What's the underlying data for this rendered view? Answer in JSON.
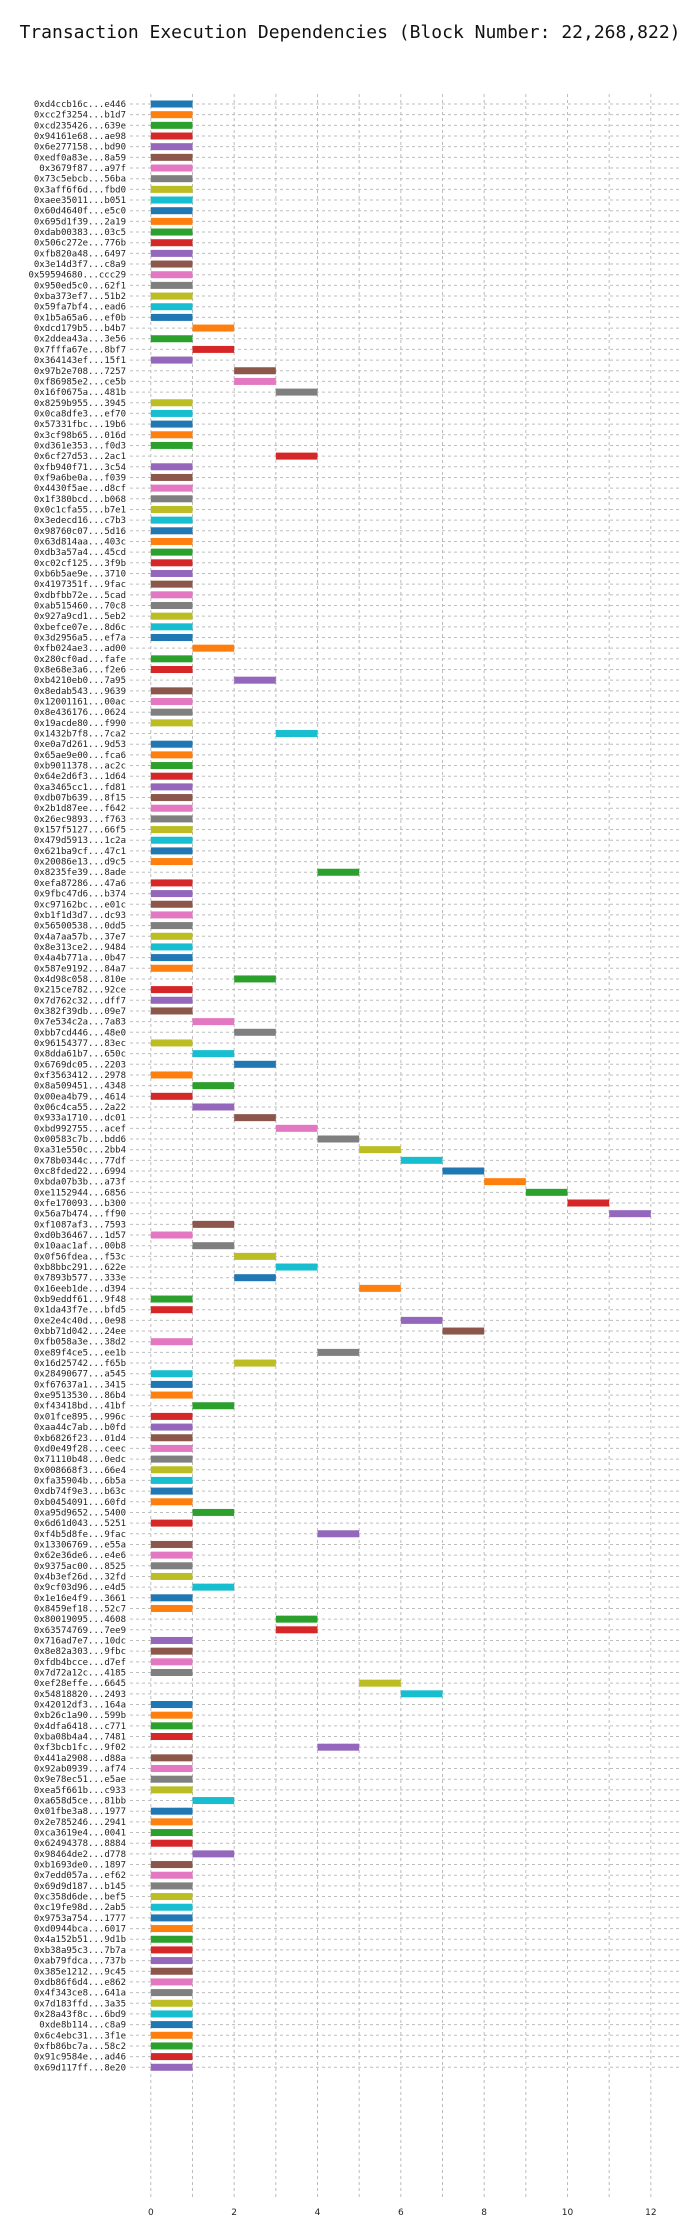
{
  "chart_data": {
    "type": "bar",
    "orientation": "horizontal-gantt",
    "title": "Transaction Execution Dependencies (Block Number: 22,268,822)",
    "xlabel": "",
    "ylabel": "",
    "xlim": [
      -0.5,
      12.7
    ],
    "xticks": [
      0,
      2,
      4,
      6,
      8,
      10,
      12
    ],
    "grid": "on",
    "legend": "none",
    "colors": [
      "#1f77b4",
      "#ff7f0e",
      "#2ca02c",
      "#d62728",
      "#9467bd",
      "#8c564b",
      "#e377c2",
      "#7f7f7f",
      "#bcbd22",
      "#17becf"
    ],
    "transactions": [
      [
        "0xd4ccb16c...e446",
        0,
        1
      ],
      [
        "0xcc2f3254...b1d7",
        0,
        1
      ],
      [
        "0xcd235426...639e",
        0,
        1
      ],
      [
        "0x94161e68...ae98",
        0,
        1
      ],
      [
        "0x6e277158...bd90",
        0,
        1
      ],
      [
        "0xedf0a83e...8a59",
        0,
        1
      ],
      [
        "0x3679f87...a97f",
        0,
        1
      ],
      [
        "0x73c5ebcb...56ba",
        0,
        1
      ],
      [
        "0x3aff6f6d...fbd0",
        0,
        1
      ],
      [
        "0xaee35011...b051",
        0,
        1
      ],
      [
        "0x60d4640f...e5c0",
        0,
        1
      ],
      [
        "0x695d1f39...2a19",
        0,
        1
      ],
      [
        "0xdab00383...03c5",
        0,
        1
      ],
      [
        "0x506c272e...776b",
        0,
        1
      ],
      [
        "0xfb820a48...6497",
        0,
        1
      ],
      [
        "0x3e14d3f7...c8a9",
        0,
        1
      ],
      [
        "0x59594680...ccc29",
        0,
        1
      ],
      [
        "0x950ed5c0...62f1",
        0,
        1
      ],
      [
        "0xba373ef7...51b2",
        0,
        1
      ],
      [
        "0x59fa7bf4...ead6",
        0,
        1
      ],
      [
        "0x1b5a65a6...ef0b",
        0,
        1
      ],
      [
        "0xdcd179b5...b4b7",
        1,
        2
      ],
      [
        "0x2ddea43a...3e56",
        0,
        1
      ],
      [
        "0x7fffa67e...8bf7",
        1,
        2
      ],
      [
        "0x364143ef...15f1",
        0,
        1
      ],
      [
        "0x97b2e708...7257",
        2,
        3
      ],
      [
        "0xf86985e2...ce5b",
        2,
        3
      ],
      [
        "0x16f0675a...481b",
        3,
        4
      ],
      [
        "0x8259b955...3945",
        0,
        1
      ],
      [
        "0x0ca8dfe3...ef70",
        0,
        1
      ],
      [
        "0x57331fbc...19b6",
        0,
        1
      ],
      [
        "0x3cf98b65...016d",
        0,
        1
      ],
      [
        "0xd361e353...f0d3",
        0,
        1
      ],
      [
        "0x6cf27d53...2ac1",
        3,
        4
      ],
      [
        "0xfb940f71...3c54",
        0,
        1
      ],
      [
        "0xf9a6be0a...f039",
        0,
        1
      ],
      [
        "0x4430f5ae...d8cf",
        0,
        1
      ],
      [
        "0x1f380bcd...b068",
        0,
        1
      ],
      [
        "0x0c1cfa55...b7e1",
        0,
        1
      ],
      [
        "0x3edecd16...c7b3",
        0,
        1
      ],
      [
        "0x98760c07...5d16",
        0,
        1
      ],
      [
        "0x63d814aa...403c",
        0,
        1
      ],
      [
        "0xdb3a57a4...45cd",
        0,
        1
      ],
      [
        "0xc02cf125...3f9b",
        0,
        1
      ],
      [
        "0xb6b5ae9e...3710",
        0,
        1
      ],
      [
        "0x4197351f...9fac",
        0,
        1
      ],
      [
        "0xdbfbb72e...5cad",
        0,
        1
      ],
      [
        "0xab515460...70c8",
        0,
        1
      ],
      [
        "0x927a9cd1...5eb2",
        0,
        1
      ],
      [
        "0xbefce07e...8d6c",
        0,
        1
      ],
      [
        "0x3d2956a5...ef7a",
        0,
        1
      ],
      [
        "0xfb024ae3...ad00",
        1,
        2
      ],
      [
        "0x280cf0ad...fafe",
        0,
        1
      ],
      [
        "0x8e68e3a6...f2e6",
        0,
        1
      ],
      [
        "0xb4210eb0...7a95",
        2,
        3
      ],
      [
        "0x8edab543...9639",
        0,
        1
      ],
      [
        "0x12001161...00ac",
        0,
        1
      ],
      [
        "0x8e436176...0624",
        0,
        1
      ],
      [
        "0x19acde80...f990",
        0,
        1
      ],
      [
        "0x1432b7f8...7ca2",
        3,
        4
      ],
      [
        "0xe0a7d261...9d53",
        0,
        1
      ],
      [
        "0x65ae9e00...fca6",
        0,
        1
      ],
      [
        "0xb9011378...ac2c",
        0,
        1
      ],
      [
        "0x64e2d6f3...1d64",
        0,
        1
      ],
      [
        "0xa3465cc1...fd81",
        0,
        1
      ],
      [
        "0xdb07b639...8f15",
        0,
        1
      ],
      [
        "0x2b1d87ee...f642",
        0,
        1
      ],
      [
        "0x26ec9893...f763",
        0,
        1
      ],
      [
        "0x157f5127...66f5",
        0,
        1
      ],
      [
        "0x479d5913...1c2a",
        0,
        1
      ],
      [
        "0x621ba9cf...47c1",
        0,
        1
      ],
      [
        "0x20086e13...d9c5",
        0,
        1
      ],
      [
        "0x8235fe39...8ade",
        4,
        5
      ],
      [
        "0xefa87286...47a6",
        0,
        1
      ],
      [
        "0x9fbc47d6...b374",
        0,
        1
      ],
      [
        "0xc97162bc...e01c",
        0,
        1
      ],
      [
        "0xb1f1d3d7...dc93",
        0,
        1
      ],
      [
        "0x56500538...0dd5",
        0,
        1
      ],
      [
        "0x4a7aa57b...37e7",
        0,
        1
      ],
      [
        "0x8e313ce2...9484",
        0,
        1
      ],
      [
        "0x4a4b771a...0b47",
        0,
        1
      ],
      [
        "0x587e9192...84a7",
        0,
        1
      ],
      [
        "0x4d98c058...810e",
        2,
        3
      ],
      [
        "0x215ce782...92ce",
        0,
        1
      ],
      [
        "0x7d762c32...dff7",
        0,
        1
      ],
      [
        "0x382f39db...09e7",
        0,
        1
      ],
      [
        "0x7e534c2a...7a83",
        1,
        2
      ],
      [
        "0xbb7cd446...48e0",
        2,
        3
      ],
      [
        "0x96154377...83ec",
        0,
        1
      ],
      [
        "0x8dda61b7...650c",
        1,
        2
      ],
      [
        "0x6769dc05...2203",
        2,
        3
      ],
      [
        "0xf3563412...2978",
        0,
        1
      ],
      [
        "0x8a509451...4348",
        1,
        2
      ],
      [
        "0x00ea4b79...4614",
        0,
        1
      ],
      [
        "0x06c4ca55...2a22",
        1,
        2
      ],
      [
        "0x933a1710...dc01",
        2,
        3
      ],
      [
        "0xbd992755...acef",
        3,
        4
      ],
      [
        "0x00583c7b...bdd6",
        4,
        5
      ],
      [
        "0xa31e550c...2bb4",
        5,
        6
      ],
      [
        "0x78b0344c...77df",
        6,
        7
      ],
      [
        "0xc8fded22...6994",
        7,
        8
      ],
      [
        "0xbda07b3b...a73f",
        8,
        9
      ],
      [
        "0xe1152944...6856",
        9,
        10
      ],
      [
        "0xfe170093...b300",
        10,
        11
      ],
      [
        "0x56a7b474...ff90",
        11,
        12
      ],
      [
        "0xf1087af3...7593",
        1,
        2
      ],
      [
        "0xd0b36467...1d57",
        0,
        1
      ],
      [
        "0x10aac1af...00b8",
        1,
        2
      ],
      [
        "0x0f56fdea...f53c",
        2,
        3
      ],
      [
        "0xb8bbc291...622e",
        3,
        4
      ],
      [
        "0x7893b577...333e",
        2,
        3
      ],
      [
        "0x16eeb1de...d394",
        5,
        6
      ],
      [
        "0xb9eddf61...9f48",
        0,
        1
      ],
      [
        "0x1da43f7e...bfd5",
        0,
        1
      ],
      [
        "0xe2e4c40d...0e98",
        6,
        7
      ],
      [
        "0xbb71d042...24ee",
        7,
        8
      ],
      [
        "0xfb058a3e...38d2",
        0,
        1
      ],
      [
        "0xe89f4ce5...ee1b",
        4,
        5
      ],
      [
        "0x16d25742...f65b",
        2,
        3
      ],
      [
        "0x28490677...a545",
        0,
        1
      ],
      [
        "0xf67637a1...3415",
        0,
        1
      ],
      [
        "0xe9513530...86b4",
        0,
        1
      ],
      [
        "0xf43418bd...41bf",
        1,
        2
      ],
      [
        "0x01fce895...996c",
        0,
        1
      ],
      [
        "0xaa44c7ab...b0fd",
        0,
        1
      ],
      [
        "0xb6826f23...01d4",
        0,
        1
      ],
      [
        "0xd0e49f28...ceec",
        0,
        1
      ],
      [
        "0x71110b48...0edc",
        0,
        1
      ],
      [
        "0x008668f3...66e4",
        0,
        1
      ],
      [
        "0xfa35904b...6b5a",
        0,
        1
      ],
      [
        "0xdb74f9e3...b63c",
        0,
        1
      ],
      [
        "0xb0454091...60fd",
        0,
        1
      ],
      [
        "0xa95d9652...5400",
        1,
        2
      ],
      [
        "0x6d61d043...5251",
        0,
        1
      ],
      [
        "0xf4b5d8fe...9fac",
        4,
        5
      ],
      [
        "0x13306769...e55a",
        0,
        1
      ],
      [
        "0x62e36de6...e4e6",
        0,
        1
      ],
      [
        "0x9375ac00...8525",
        0,
        1
      ],
      [
        "0x4b3ef26d...32fd",
        0,
        1
      ],
      [
        "0x9cf03d96...e4d5",
        1,
        2
      ],
      [
        "0x1e16e4f9...3661",
        0,
        1
      ],
      [
        "0x8459ef18...52c7",
        0,
        1
      ],
      [
        "0x80019095...4608",
        3,
        4
      ],
      [
        "0x63574769...7ee9",
        3,
        4
      ],
      [
        "0x716ad7e7...10dc",
        0,
        1
      ],
      [
        "0x8e82a303...9fbc",
        0,
        1
      ],
      [
        "0xfdb4bcce...d7ef",
        0,
        1
      ],
      [
        "0x7d72a12c...4185",
        0,
        1
      ],
      [
        "0xef28effe...6645",
        5,
        6
      ],
      [
        "0x54818820...2493",
        6,
        7
      ],
      [
        "0x42012df3...164a",
        0,
        1
      ],
      [
        "0xb26c1a90...599b",
        0,
        1
      ],
      [
        "0x4dfa6418...c771",
        0,
        1
      ],
      [
        "0xba08b4a4...7481",
        0,
        1
      ],
      [
        "0xf3bcb1fc...9f02",
        4,
        5
      ],
      [
        "0x441a2908...d88a",
        0,
        1
      ],
      [
        "0x92ab0939...af74",
        0,
        1
      ],
      [
        "0x9e78ec51...e5ae",
        0,
        1
      ],
      [
        "0xea5f661b...c933",
        0,
        1
      ],
      [
        "0xa658d5ce...81bb",
        1,
        2
      ],
      [
        "0x01fbe3a8...1977",
        0,
        1
      ],
      [
        "0x2e785246...2941",
        0,
        1
      ],
      [
        "0xca3619e4...0041",
        0,
        1
      ],
      [
        "0x62494378...8884",
        0,
        1
      ],
      [
        "0x98464de2...d778",
        1,
        2
      ],
      [
        "0xb1693de0...1897",
        0,
        1
      ],
      [
        "0x7edd057a...ef62",
        0,
        1
      ],
      [
        "0x69d9d187...b145",
        0,
        1
      ],
      [
        "0xc358d6de...bef5",
        0,
        1
      ],
      [
        "0xc19fe98d...2ab5",
        0,
        1
      ],
      [
        "0x9753a754...1777",
        0,
        1
      ],
      [
        "0xd0944bca...6017",
        0,
        1
      ],
      [
        "0x4a152b51...9d1b",
        0,
        1
      ],
      [
        "0xb38a95c3...7b7a",
        0,
        1
      ],
      [
        "0xab79fdca...737b",
        0,
        1
      ],
      [
        "0x385e1212...9c45",
        0,
        1
      ],
      [
        "0xdb86f6d4...e862",
        0,
        1
      ],
      [
        "0x4f343ce8...641a",
        0,
        1
      ],
      [
        "0x7d183ffd...3a35",
        0,
        1
      ],
      [
        "0x28a43f8c...6bd9",
        0,
        1
      ],
      [
        "0xde8b114...c8a9",
        0,
        1
      ],
      [
        "0x6c4ebc31...3f1e",
        0,
        1
      ],
      [
        "0xfb86bc7a...58c2",
        0,
        1
      ],
      [
        "0x91c9584e...ad46",
        0,
        1
      ],
      [
        "0x69d117ff...8e20",
        0,
        1
      ]
    ]
  }
}
